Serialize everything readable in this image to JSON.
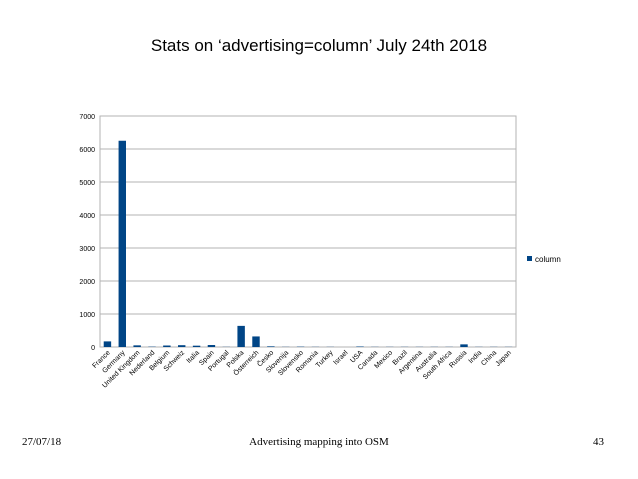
{
  "slide": {
    "title": "Stats on ‘advertising=column’ July 24th 2018",
    "footer_date": "27/07/18",
    "footer_caption": "Advertising mapping into OSM",
    "page_number": "43"
  },
  "chart_data": {
    "type": "bar",
    "categories": [
      "France",
      "Germany",
      "United Kingdom",
      "Nederland",
      "Belgium",
      "Schweiz",
      "Italia",
      "Spain",
      "Portugal",
      "Polska",
      "Österreich",
      "Česko",
      "Slovenija",
      "Slovensko",
      "Romania",
      "Turkey",
      "Israel",
      "USA",
      "Canada",
      "Mexico",
      "Brazil",
      "Argentina",
      "Australia",
      "South Africa",
      "Russia",
      "India",
      "China",
      "Japan"
    ],
    "series": [
      {
        "name": "column",
        "values": [
          170,
          6250,
          50,
          10,
          45,
          55,
          40,
          60,
          5,
          640,
          320,
          20,
          5,
          10,
          5,
          5,
          0,
          15,
          5,
          5,
          5,
          5,
          5,
          5,
          80,
          5,
          5,
          5
        ]
      }
    ],
    "ylim": [
      0,
      7000
    ],
    "yticks": [
      "0",
      "1000",
      "2000",
      "3000",
      "4000",
      "5000",
      "6000",
      "7000"
    ],
    "grid": true,
    "legend_position": "right",
    "bar_color": "#004586"
  }
}
